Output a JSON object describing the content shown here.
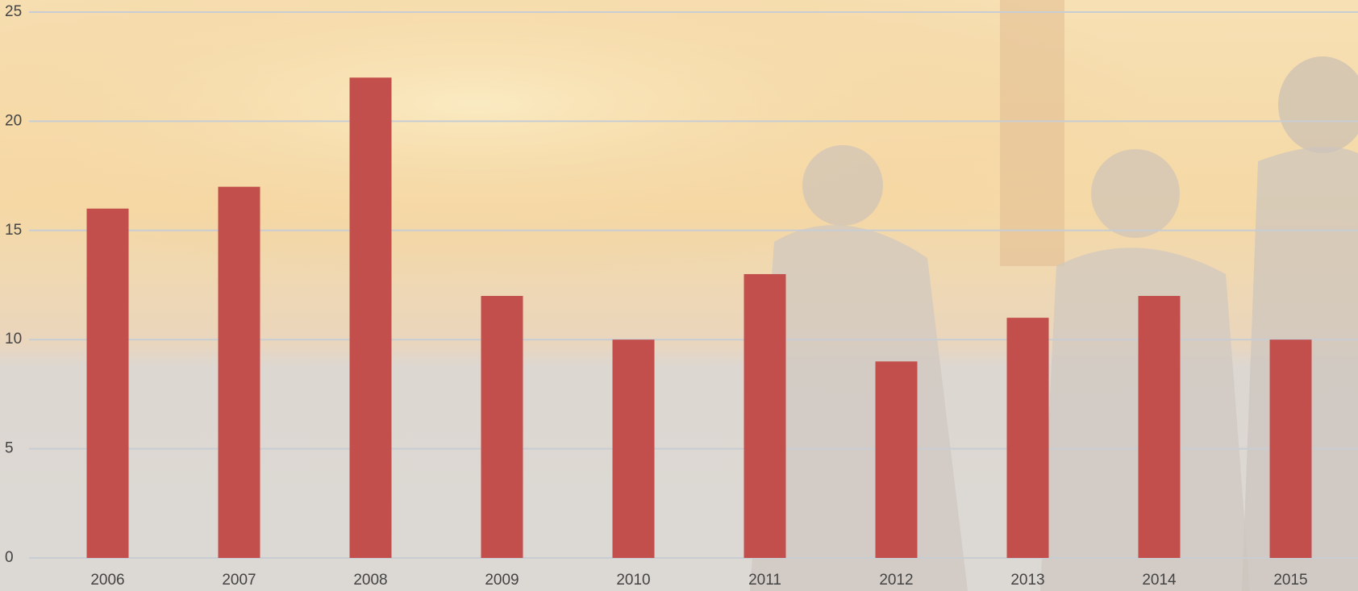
{
  "chart_data": {
    "type": "bar",
    "categories": [
      "2006",
      "2007",
      "2008",
      "2009",
      "2010",
      "2011",
      "2012",
      "2013",
      "2014",
      "2015"
    ],
    "values": [
      16,
      17,
      22,
      12,
      10,
      13,
      9,
      11,
      12,
      10
    ],
    "color": "#c24f4b",
    "ylim": [
      0,
      25
    ],
    "yticks": [
      0,
      5,
      10,
      15,
      20,
      25
    ],
    "grid": true
  }
}
